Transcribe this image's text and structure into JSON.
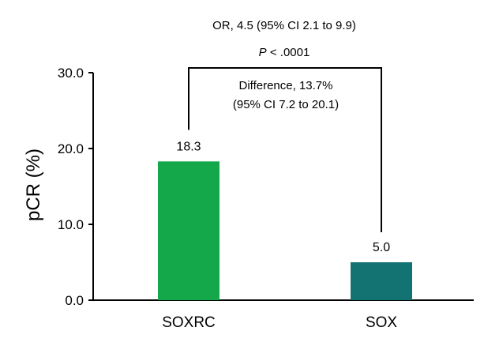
{
  "chart_data": {
    "type": "bar",
    "title": "",
    "xlabel": "",
    "ylabel": "pCR (%)",
    "ylim": [
      0,
      30
    ],
    "yticks": [
      0,
      10,
      20,
      30
    ],
    "ytick_labels": [
      "0.0",
      "10.0",
      "20.0",
      "30.0"
    ],
    "categories": [
      "SOXRC",
      "SOX"
    ],
    "values": [
      18.3,
      5.0
    ],
    "value_labels": [
      "18.3",
      "5.0"
    ],
    "colors": [
      "#14a84a",
      "#137272"
    ],
    "grid": false,
    "legend": "none",
    "annotations": {
      "or_text": "OR, 4.5 (95% CI 2.1 to 9.9)",
      "p_italic": "P",
      "p_rest": " < .0001",
      "difference_line1": "Difference, 13.7%",
      "difference_line2": "(95% CI 7.2 to 20.1)"
    }
  }
}
